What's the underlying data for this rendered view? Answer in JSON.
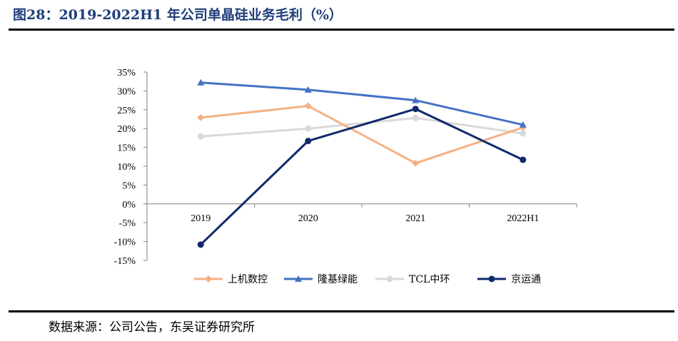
{
  "title": "图28：2019-2022H1 年公司单晶硅业务毛利（%）",
  "source": "数据来源：公司公告，东吴证券研究所",
  "chart_data": {
    "type": "line",
    "title": "2019-2022H1 年公司单晶硅业务毛利（%）",
    "categories": [
      "2019",
      "2020",
      "2021",
      "2022H1"
    ],
    "ylim": [
      -15,
      35
    ],
    "ytick_step": 5,
    "ytick_labels": [
      "35%",
      "30%",
      "25%",
      "20%",
      "15%",
      "10%",
      "5%",
      "0%",
      "-5%",
      "-10%",
      "-15%"
    ],
    "legend_position": "bottom",
    "series": [
      {
        "name": "上机数控",
        "values": [
          22.9,
          26.0,
          10.8,
          20.3
        ],
        "color": "#f4b183",
        "marker": "diamond"
      },
      {
        "name": "隆基绿能",
        "values": [
          32.2,
          30.3,
          27.5,
          21.0
        ],
        "color": "#4472c4",
        "marker": "triangle"
      },
      {
        "name": "TCL中环",
        "values": [
          17.9,
          20.0,
          22.8,
          18.7
        ],
        "color": "#d9d9d9",
        "marker": "circle"
      },
      {
        "name": "京运通",
        "values": [
          -10.8,
          16.7,
          25.2,
          11.7
        ],
        "color": "#0f2a6b",
        "marker": "circle"
      }
    ]
  }
}
